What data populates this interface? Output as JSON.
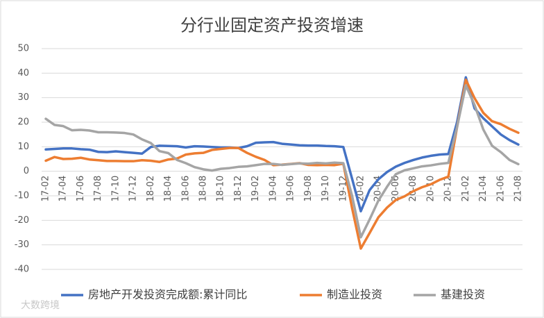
{
  "chart_data": {
    "type": "line",
    "title": "分行业固定资产投资增速",
    "watermark": "大数跨境",
    "categories": [
      "17-02",
      null,
      "17-04",
      null,
      "17-06",
      null,
      "17-08",
      null,
      "17-10",
      null,
      "17-12",
      null,
      "18-02",
      null,
      "18-04",
      null,
      "18-06",
      null,
      "18-08",
      null,
      "18-10",
      null,
      "18-12",
      null,
      "19-02",
      null,
      "19-04",
      null,
      "19-06",
      null,
      "19-08",
      null,
      "19-10",
      null,
      "19-12",
      null,
      "20-02",
      null,
      "20-04",
      null,
      "20-06",
      null,
      "20-08",
      null,
      "20-10",
      null,
      "20-12",
      null,
      "21-02",
      null,
      "21-04",
      null,
      "21-06",
      null,
      "21-08"
    ],
    "series": [
      {
        "name": "房地产开发投资完成额:累计同比",
        "color": "#4472c4",
        "values": [
          8.9,
          9.1,
          9.3,
          9.3,
          9.0,
          8.8,
          7.9,
          7.8,
          8.1,
          7.8,
          7.5,
          7.2,
          9.9,
          10.4,
          10.3,
          10.2,
          9.7,
          10.2,
          10.1,
          9.9,
          9.7,
          9.7,
          9.5,
          10.2,
          11.6,
          11.8,
          11.9,
          11.2,
          10.9,
          10.6,
          10.5,
          10.5,
          10.3,
          10.2,
          9.9,
          -3,
          -16.3,
          -7.7,
          -3.3,
          -0.3,
          1.9,
          3.4,
          4.6,
          5.6,
          6.3,
          6.8,
          7.0,
          20,
          38.3,
          25.6,
          21.6,
          18.3,
          15.0,
          12.7,
          10.9
        ]
      },
      {
        "name": "制造业投资",
        "color": "#ed7d31",
        "values": [
          4.3,
          5.8,
          5.0,
          5.1,
          5.5,
          4.8,
          4.5,
          4.2,
          4.2,
          4.1,
          4.1,
          4.5,
          4.3,
          3.8,
          4.8,
          5.2,
          6.8,
          7.3,
          7.5,
          8.7,
          9.1,
          9.5,
          9.5,
          7.5,
          5.9,
          4.6,
          2.5,
          2.7,
          3.0,
          3.3,
          2.6,
          2.5,
          2.6,
          2.5,
          3.1,
          -15,
          -31.5,
          -25.2,
          -18.8,
          -14.8,
          -11.7,
          -10.2,
          -8.1,
          -6.5,
          -5.3,
          -3.5,
          -2.2,
          18,
          37.3,
          29.8,
          23.8,
          20.4,
          19.2,
          17.3,
          15.7
        ]
      },
      {
        "name": "基建投资",
        "color": "#a5a5a5",
        "values": [
          21.4,
          18.9,
          18.4,
          16.7,
          16.9,
          16.6,
          15.9,
          15.9,
          15.8,
          15.6,
          15.0,
          13.0,
          11.5,
          8.2,
          7.4,
          4.6,
          3.3,
          1.7,
          0.8,
          0.3,
          1.0,
          1.3,
          1.8,
          2.0,
          2.5,
          3.0,
          3.0,
          2.6,
          2.9,
          3.2,
          3.1,
          3.4,
          3.2,
          3.5,
          3.3,
          -10,
          -26.9,
          -19.7,
          -12,
          -6.3,
          -1.2,
          0.4,
          1.2,
          2.0,
          2.4,
          3.0,
          3.4,
          18,
          35,
          27,
          17,
          10.4,
          7.8,
          4.6,
          2.9
        ]
      }
    ],
    "ylim": [
      -40,
      50
    ],
    "yticks": [
      -40,
      -30,
      -20,
      -10,
      0,
      10,
      20,
      30,
      40,
      50
    ],
    "grid": true,
    "legend": "bottom"
  }
}
